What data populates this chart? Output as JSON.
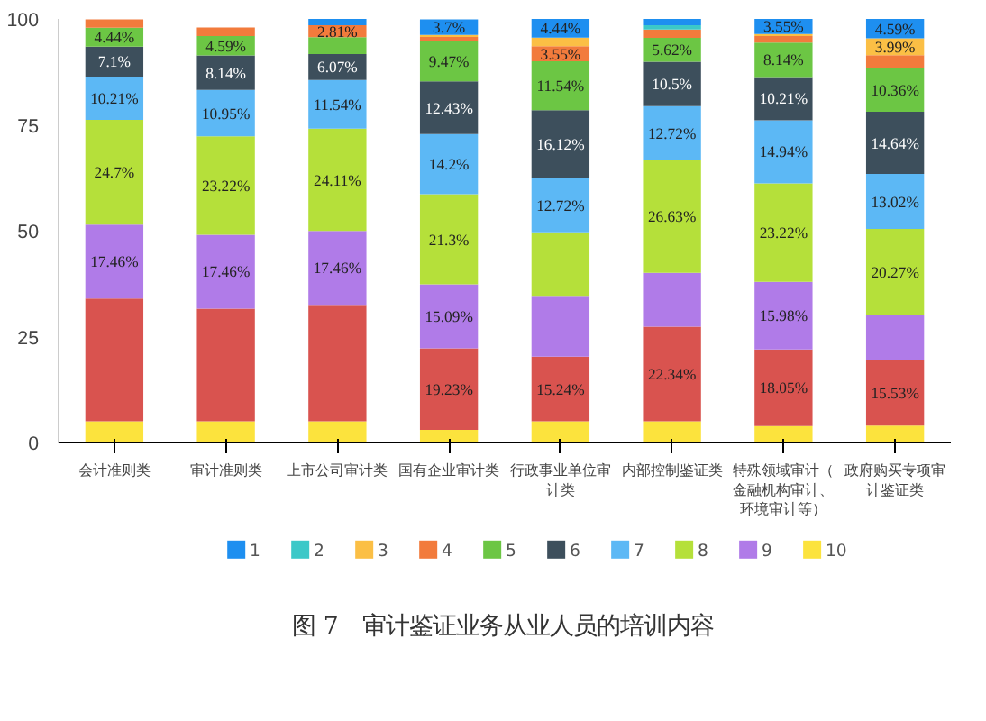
{
  "chart_data": {
    "type": "bar",
    "stacked": true,
    "title": "图 7　审计鉴证业务从业人员的培训内容",
    "categories": [
      "会计准则类",
      "审计准则类",
      "上市公司审计类",
      "国有企业审计类",
      "行政事业单位审计类",
      "内部控制鉴证类",
      "特殊领域审计（金融机构审计、环境审计等）",
      "政府购买专项审计鉴证类"
    ],
    "ylim": [
      0,
      100
    ],
    "yticks": [
      0,
      25,
      50,
      75,
      100
    ],
    "grid": false,
    "legend": "bottom",
    "series": [
      {
        "name": "10",
        "color": "#fce33d",
        "values": [
          5,
          5,
          5,
          3,
          5,
          5,
          3.9,
          4
        ],
        "value_labels": [
          null,
          null,
          null,
          null,
          null,
          null,
          null,
          null
        ]
      },
      {
        "color": "#d9534f",
        "values": [
          29,
          26.6,
          27.5,
          19.23,
          15.24,
          22.34,
          18.05,
          15.53
        ],
        "value_labels": [
          null,
          null,
          null,
          "19.23%",
          "15.24%",
          "22.34%",
          "18.05%",
          "15.53%"
        ]
      },
      {
        "name": "9",
        "color": "#b07be8",
        "values": [
          17.46,
          17.46,
          17.46,
          15.09,
          14.4,
          12.7,
          15.98,
          10.6
        ],
        "value_labels": [
          "17.46%",
          "17.46%",
          "17.46%",
          "15.09%",
          null,
          null,
          "15.98%",
          null
        ]
      },
      {
        "name": "8",
        "color": "#b5e03a",
        "values": [
          24.7,
          23.22,
          24.11,
          21.3,
          15,
          26.63,
          23.22,
          20.27
        ],
        "value_labels": [
          "24.7%",
          "23.22%",
          "24.11%",
          "21.3%",
          null,
          "26.63%",
          "23.22%",
          "20.27%"
        ]
      },
      {
        "name": "7",
        "color": "#5cb8f5",
        "values": [
          10.21,
          10.95,
          11.54,
          14.2,
          12.72,
          12.72,
          14.94,
          13.02
        ],
        "value_labels": [
          "10.21%",
          "10.95%",
          "11.54%",
          "14.2%",
          "12.72%",
          "12.72%",
          "14.94%",
          "13.02%"
        ]
      },
      {
        "name": "6",
        "color": "#3d4f5c",
        "values": [
          7.1,
          8.14,
          6.07,
          12.43,
          16.12,
          10.5,
          10.21,
          14.64
        ],
        "value_labels": [
          "7.1%",
          "8.14%",
          "6.07%",
          "12.43%",
          "16.12%",
          "10.5%",
          "10.21%",
          "14.64%"
        ]
      },
      {
        "name": "5",
        "color": "#6cc644",
        "values": [
          4.44,
          4.59,
          4,
          9.47,
          11.54,
          5.62,
          8.14,
          10.36
        ],
        "value_labels": [
          "4.44%",
          "4.59%",
          null,
          "9.47%",
          "11.54%",
          "5.62%",
          "8.14%",
          "10.36%"
        ]
      },
      {
        "name": "4",
        "color": "#f27b3c",
        "values": [
          2,
          2,
          2.81,
          1,
          3.55,
          2,
          1.5,
          3
        ],
        "value_labels": [
          null,
          null,
          "2.81%",
          null,
          "3.55%",
          null,
          null,
          null
        ]
      },
      {
        "name": "3",
        "color": "#fbbf45",
        "values": [
          0,
          0,
          0,
          0.5,
          2,
          0,
          0.5,
          3.99
        ],
        "value_labels": [
          null,
          null,
          null,
          null,
          null,
          null,
          null,
          "3.99%"
        ]
      },
      {
        "name": "2",
        "color": "#3cc8c8",
        "values": [
          0,
          0,
          0,
          0,
          0,
          1,
          0,
          0
        ],
        "value_labels": [
          null,
          null,
          null,
          null,
          null,
          null,
          null,
          null
        ]
      },
      {
        "name": "1",
        "color": "#1e8ff0",
        "values": [
          0,
          0,
          1.5,
          3.7,
          4.44,
          1.5,
          3.55,
          4.59
        ],
        "value_labels": [
          null,
          null,
          null,
          "3.7%",
          "4.44%",
          null,
          "3.55%",
          "4.59%"
        ]
      }
    ]
  }
}
